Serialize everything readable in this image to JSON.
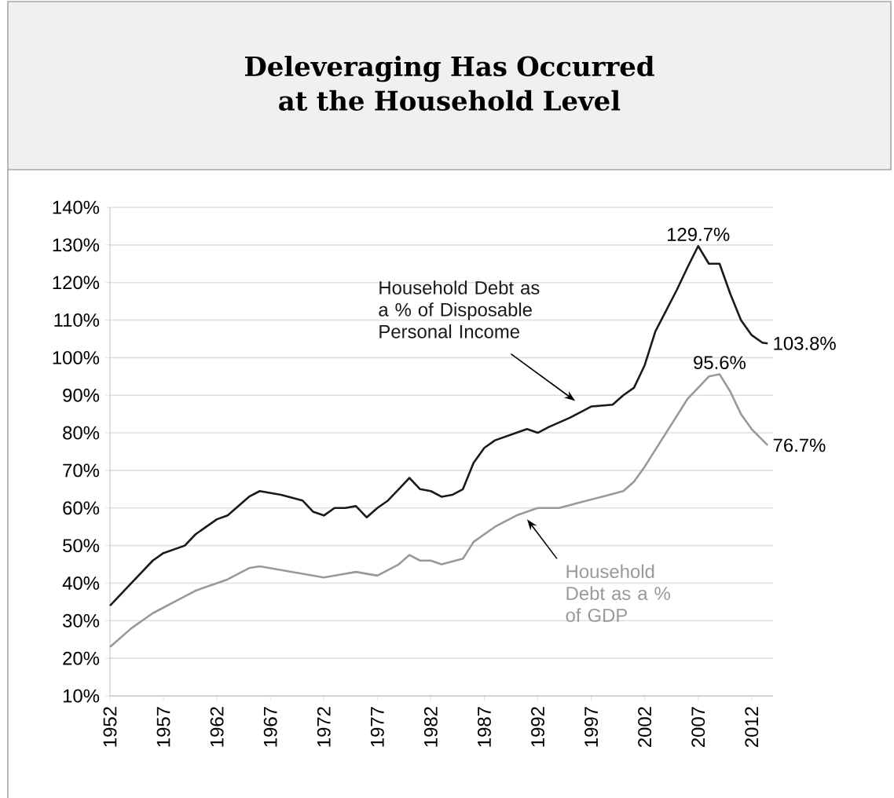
{
  "chart_data": {
    "type": "line",
    "title": "Deleveraging Has Occurred at the Household Level",
    "xlim": [
      1952,
      2014
    ],
    "xticks": [
      1952,
      1957,
      1962,
      1967,
      1972,
      1977,
      1982,
      1987,
      1992,
      1997,
      2002,
      2007,
      2012
    ],
    "ylim": [
      10,
      140
    ],
    "yticks": [
      {
        "value": 10,
        "label": "10%"
      },
      {
        "value": 20,
        "label": "20%"
      },
      {
        "value": 30,
        "label": "30%"
      },
      {
        "value": 40,
        "label": "40%"
      },
      {
        "value": 50,
        "label": "50%"
      },
      {
        "value": 60,
        "label": "60%"
      },
      {
        "value": 70,
        "label": "70%"
      },
      {
        "value": 80,
        "label": "80%"
      },
      {
        "value": 90,
        "label": "90%"
      },
      {
        "value": 100,
        "label": "100%"
      },
      {
        "value": 110,
        "label": "110%"
      },
      {
        "value": 120,
        "label": "120%"
      },
      {
        "value": 130,
        "label": "130%"
      },
      {
        "value": 140,
        "label": "140%"
      }
    ],
    "grid": "y",
    "marker": "none",
    "line_style": "solid",
    "series": [
      {
        "name": "Household Debt as a % of Disposable Personal Income",
        "color": "#1a1a1a",
        "x": [
          1952,
          1954,
          1956,
          1957,
          1959,
          1960,
          1962,
          1963,
          1965,
          1966,
          1968,
          1970,
          1971,
          1972,
          1973,
          1974,
          1975,
          1976,
          1977,
          1978,
          1979,
          1980,
          1981,
          1982,
          1983,
          1984,
          1985,
          1986,
          1987,
          1988,
          1990,
          1991,
          1992,
          1993,
          1995,
          1997,
          1999,
          2000,
          2001,
          2002,
          2003,
          2005,
          2006,
          2007,
          2008,
          2009,
          2010,
          2011,
          2012,
          2013,
          2013.5
        ],
        "values": [
          34,
          40,
          46,
          48,
          50,
          53,
          57,
          58,
          63,
          64.5,
          63.5,
          62,
          59,
          58,
          60,
          60,
          60.5,
          57.5,
          60,
          62,
          65,
          68,
          65,
          64.5,
          63,
          63.5,
          65,
          72,
          76,
          78,
          80,
          81,
          80,
          81.5,
          84,
          87,
          87.5,
          90,
          92,
          98,
          107,
          118,
          124,
          129.7,
          125,
          125,
          117,
          110,
          106,
          104,
          103.8
        ]
      },
      {
        "name": "Household Debt as a % of GDP",
        "color": "#999999",
        "x": [
          1952,
          1954,
          1956,
          1958,
          1960,
          1962,
          1963,
          1965,
          1966,
          1968,
          1970,
          1972,
          1974,
          1975,
          1977,
          1979,
          1980,
          1981,
          1982,
          1983,
          1985,
          1986,
          1988,
          1990,
          1992,
          1994,
          1996,
          1998,
          2000,
          2001,
          2002,
          2004,
          2006,
          2008,
          2009,
          2010,
          2011,
          2012,
          2013.5
        ],
        "values": [
          23,
          28,
          32,
          35,
          38,
          40,
          41,
          44,
          44.5,
          43.5,
          42.5,
          41.5,
          42.5,
          43,
          42,
          45,
          47.5,
          46,
          46,
          45,
          46.5,
          51,
          55,
          58,
          60,
          60,
          61.5,
          63,
          64.5,
          67,
          71,
          80,
          89,
          95,
          95.6,
          91,
          85,
          81,
          76.7
        ]
      }
    ],
    "annotations": [
      {
        "text": "129.7%",
        "x": 2007,
        "y": 129.7
      },
      {
        "text": "95.6%",
        "x": 2009,
        "y": 95.6
      },
      {
        "text": "103.8%",
        "x": 2013.5,
        "y": 103.8
      },
      {
        "text": "76.7%",
        "x": 2013.5,
        "y": 76.7
      }
    ]
  }
}
